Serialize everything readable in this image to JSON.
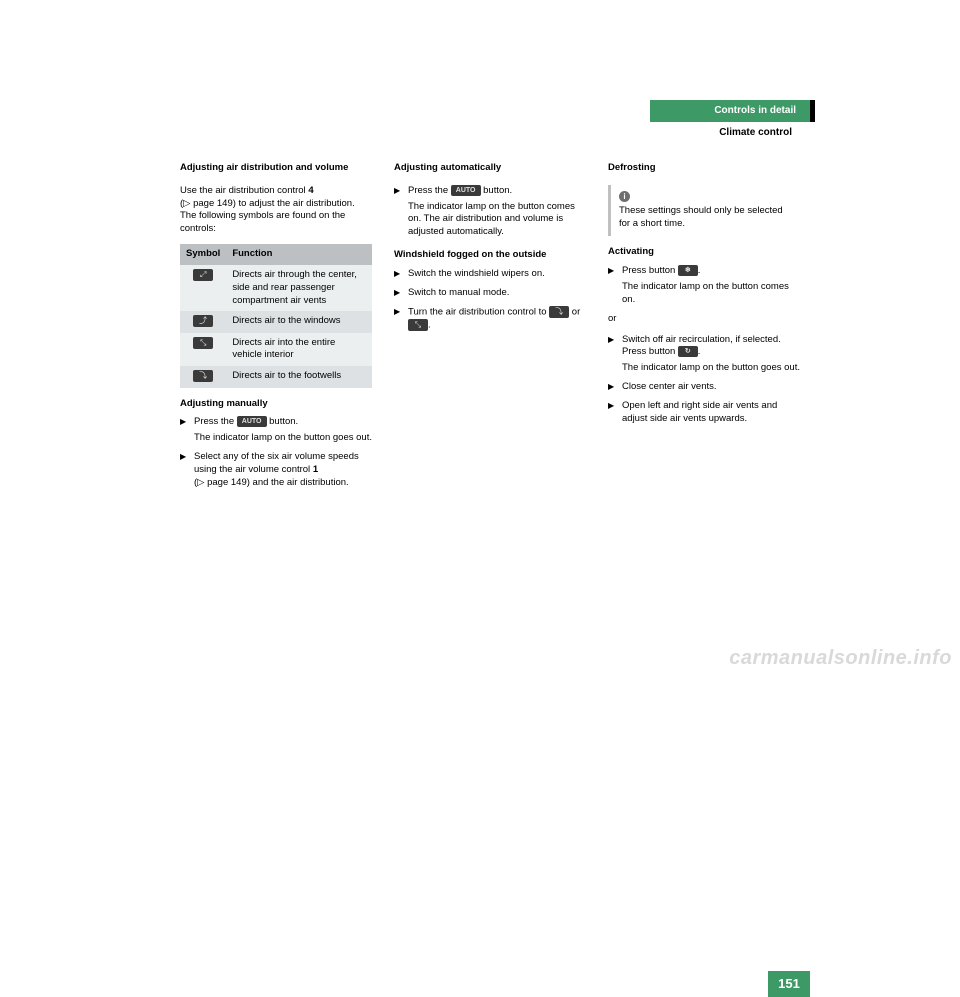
{
  "header": {
    "title_bar": "Controls in detail",
    "subtitle": "Climate control",
    "title_bg": "#3d9966",
    "title_color": "#ffffff"
  },
  "col1": {
    "heading": "Adjusting air distribution and volume",
    "intro_1": "Use the air distribution control ",
    "intro_bold": "4",
    "intro_2": "(▷ page 149) to adjust the air distribution. The following symbols are found on the controls:",
    "table": {
      "col_symbol": "Symbol",
      "col_function": "Function",
      "rows": [
        {
          "icon": "⬚",
          "text": "Directs air through the center, side and rear passenger compartment air vents"
        },
        {
          "icon": "⬚",
          "text": "Directs air to the windows"
        },
        {
          "icon": "⬚",
          "text": "Directs air into the entire vehicle interior"
        },
        {
          "icon": "⬚",
          "text": "Directs air to the footwells"
        }
      ]
    },
    "subheading": "Adjusting manually",
    "step1a": "Press the ",
    "step1btn": "AUTO",
    "step1b": " button.",
    "step1note": "The indicator lamp on the button goes out.",
    "step2a": "Select any of the six air volume speeds using the air volume control ",
    "step2bold": "1",
    "step2b": "(▷ page 149) and the air distribution."
  },
  "col2": {
    "heading": "Adjusting automatically",
    "step1a": "Press the ",
    "step1btn": "AUTO",
    "step1b": " button.",
    "step1note": "The indicator lamp on the button comes on. The air distribution and volume is adjusted automatically.",
    "subheading": "Windshield fogged on the outside",
    "w1": "Switch the windshield wipers on.",
    "w2": "Switch to manual mode.",
    "w3a": "Turn the air distribution control to ",
    "w3mid": " or ",
    "w3b": "."
  },
  "col3": {
    "heading": "Defrosting",
    "info": "These settings should only be selected for a short time.",
    "subheading": "Activating",
    "a1a": "Press button ",
    "a1b": ".",
    "a1note": "The indicator lamp on the button comes on.",
    "or": "or",
    "a2a": "Switch off air recirculation, if selected. Press button ",
    "a2b": ".",
    "a2note": "The indicator lamp on the button goes out.",
    "a3": "Close center air vents.",
    "a4": "Open left and right side air vents and adjust side air vents upwards."
  },
  "page_number": "151",
  "watermark": "carmanualsonline.info",
  "colors": {
    "green": "#3d9966",
    "table_header": "#bcc0c3",
    "row_light": "#eceff0",
    "row_dark": "#dde1e3",
    "chip": "#3a3a3a"
  }
}
